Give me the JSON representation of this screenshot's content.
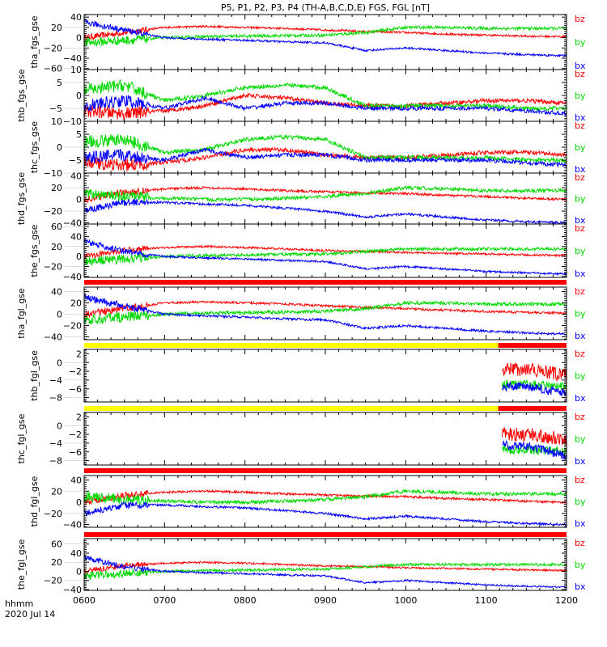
{
  "chart_data": {
    "type": "line",
    "title": "P5, P1, P2, P3, P4 (TH-A,B,C,D,E) FGS, FGL [nT]",
    "xlabel_lines": [
      "hhmm",
      "2020 Jul 14"
    ],
    "xlim": [
      6.0,
      12.0
    ],
    "x_ticks": [
      6,
      7,
      8,
      9,
      10,
      11,
      12
    ],
    "x_tick_labels": [
      "0600",
      "0700",
      "0800",
      "0900",
      "1000",
      "1100",
      "1200"
    ],
    "knot_times": [
      6.0,
      6.5,
      7.0,
      7.5,
      8.0,
      8.5,
      9.0,
      9.5,
      10.0,
      10.5,
      11.0,
      11.5,
      12.0
    ],
    "legend": [
      "bz",
      "by",
      "bx"
    ],
    "colors": {
      "bz": "#ff0000",
      "by": "#00d800",
      "bx": "#0000ff",
      "bar_red": "#ff0000",
      "bar_yellow": "#ffff00"
    },
    "panels": [
      {
        "ylabel": "tha_fgs_gse",
        "ylim": [
          -62,
          45
        ],
        "ticks": [
          40,
          20,
          0,
          -20,
          -40,
          -60
        ],
        "tick_labels": [
          "40",
          "20",
          "0",
          "−20",
          "−40",
          "−60"
        ],
        "series": {
          "bz": [
            0,
            10,
            20,
            22,
            20,
            18,
            15,
            12,
            10,
            7,
            5,
            3,
            2
          ],
          "by": [
            -10,
            -5,
            0,
            2,
            3,
            4,
            5,
            10,
            20,
            20,
            18,
            18,
            18
          ],
          "bx": [
            30,
            15,
            0,
            -3,
            -5,
            -8,
            -10,
            -25,
            -20,
            -25,
            -30,
            -33,
            -35
          ]
        },
        "noise": [
          2,
          3,
          2
        ]
      },
      {
        "ylabel": "thb_fgs_gse",
        "ylim": [
          -10,
          10
        ],
        "ticks": [
          10,
          5,
          0,
          -5,
          -10
        ],
        "tick_labels": [
          "10",
          "5",
          "0",
          "−5",
          "−10"
        ],
        "series": {
          "bz": [
            -6,
            -7,
            -6,
            -4,
            0,
            -1,
            -3,
            -4,
            -4,
            -3,
            -2,
            -2,
            -3
          ],
          "by": [
            2,
            4,
            -2,
            0,
            3,
            4,
            3,
            -4,
            -4,
            -4,
            -4,
            -5,
            -5
          ],
          "bx": [
            -4,
            -2,
            -5,
            -1,
            -5,
            -3,
            -3,
            -5,
            -5,
            -5,
            -5,
            -6,
            -7
          ]
        },
        "noise": [
          0.8,
          0.8,
          0.8
        ]
      },
      {
        "ylabel": "thc_fgs_gse",
        "ylim": [
          -10,
          10
        ],
        "ticks": [
          10,
          5,
          0,
          -5,
          -10
        ],
        "tick_labels": [
          "10",
          "5",
          "0",
          "−5",
          "−10"
        ],
        "series": {
          "bz": [
            -6,
            -7,
            -6,
            -4,
            -1,
            -1,
            -3,
            -4,
            -4,
            -3,
            -2,
            -2,
            -3
          ],
          "by": [
            2,
            3,
            -2,
            -1,
            3,
            4,
            3,
            -4,
            -4,
            -4,
            -4,
            -5,
            -5
          ],
          "bx": [
            -4,
            -3,
            -5,
            -1,
            -4,
            -3,
            -3,
            -5,
            -5,
            -5,
            -5,
            -6,
            -7
          ]
        },
        "noise": [
          0.8,
          0.8,
          0.8
        ]
      },
      {
        "ylabel": "thd_fgs_gse",
        "ylim": [
          -42,
          45
        ],
        "ticks": [
          40,
          20,
          0,
          -20,
          -40
        ],
        "tick_labels": [
          "40",
          "20",
          "0",
          "−20",
          "−40"
        ],
        "series": {
          "bz": [
            0,
            12,
            18,
            20,
            18,
            15,
            13,
            11,
            10,
            7,
            5,
            2,
            0
          ],
          "by": [
            10,
            5,
            2,
            0,
            0,
            2,
            5,
            10,
            20,
            18,
            15,
            15,
            15
          ],
          "bx": [
            -20,
            -5,
            -5,
            -8,
            -10,
            -15,
            -20,
            -30,
            -25,
            -30,
            -35,
            -38,
            -40
          ]
        },
        "noise": [
          2,
          3,
          2
        ]
      },
      {
        "ylabel": "the_fgs_gse",
        "ylim": [
          -42,
          65
        ],
        "ticks": [
          60,
          40,
          20,
          0,
          -20,
          -40
        ],
        "tick_labels": [
          "60",
          "40",
          "20",
          "0",
          "−20",
          "−40"
        ],
        "series": {
          "bz": [
            0,
            12,
            18,
            20,
            18,
            15,
            12,
            10,
            8,
            6,
            5,
            3,
            2
          ],
          "by": [
            -10,
            -5,
            0,
            2,
            3,
            4,
            5,
            10,
            15,
            15,
            15,
            15,
            15
          ],
          "bx": [
            30,
            10,
            0,
            -3,
            -5,
            -8,
            -10,
            -25,
            -20,
            -25,
            -30,
            -33,
            -35
          ]
        },
        "noise": [
          2,
          3,
          2
        ]
      },
      {
        "ylabel": "tha_fgl_gse",
        "ylim": [
          -45,
          48
        ],
        "ticks": [
          40,
          20,
          0,
          -20,
          -40
        ],
        "tick_labels": [
          "40",
          "20",
          "0",
          "−20",
          "−40"
        ],
        "series": {
          "bz": [
            0,
            10,
            20,
            22,
            20,
            18,
            15,
            12,
            10,
            7,
            5,
            3,
            2
          ],
          "by": [
            -10,
            -5,
            0,
            2,
            3,
            4,
            5,
            10,
            20,
            20,
            18,
            18,
            18
          ],
          "bx": [
            30,
            15,
            0,
            -3,
            -5,
            -8,
            -10,
            -25,
            -20,
            -25,
            -30,
            -33,
            -35
          ]
        },
        "noise": [
          2,
          3,
          2
        ]
      },
      {
        "ylabel": "thb_fgl_gse",
        "ylim": [
          -9,
          3
        ],
        "ticks": [
          2,
          0,
          -2,
          -4,
          -6,
          -8
        ],
        "tick_labels": [
          "2",
          "0",
          "−2",
          "−4",
          "−6",
          "−8"
        ],
        "series": {
          "bz": [
            null,
            null,
            null,
            null,
            null,
            null,
            null,
            null,
            null,
            null,
            null,
            -1.5,
            -3
          ],
          "by": [
            null,
            null,
            null,
            null,
            null,
            null,
            null,
            null,
            null,
            null,
            null,
            -5,
            -5.5
          ],
          "bx": [
            null,
            null,
            null,
            null,
            null,
            null,
            null,
            null,
            null,
            null,
            null,
            -5.5,
            -7
          ]
        },
        "noise": [
          0.8,
          0.5,
          0.5
        ],
        "data_start": 11.2
      },
      {
        "ylabel": "thc_fgl_gse",
        "ylim": [
          -9,
          3
        ],
        "ticks": [
          2,
          0,
          -2,
          -4,
          -6,
          -8
        ],
        "tick_labels": [
          "2",
          "0",
          "−2",
          "−4",
          "−6",
          "−8"
        ],
        "series": {
          "bz": [
            null,
            null,
            null,
            null,
            null,
            null,
            null,
            null,
            null,
            null,
            null,
            -2,
            -3
          ],
          "by": [
            null,
            null,
            null,
            null,
            null,
            null,
            null,
            null,
            null,
            null,
            null,
            -5.5,
            -6
          ],
          "bx": [
            null,
            null,
            null,
            null,
            null,
            null,
            null,
            null,
            null,
            null,
            null,
            -4.5,
            -7
          ]
        },
        "noise": [
          0.8,
          0.5,
          0.5
        ],
        "data_start": 11.2
      },
      {
        "ylabel": "thd_fgl_gse",
        "ylim": [
          -45,
          48
        ],
        "ticks": [
          40,
          20,
          0,
          -20,
          -40
        ],
        "tick_labels": [
          "40",
          "20",
          "0",
          "−20",
          "−40"
        ],
        "series": {
          "bz": [
            0,
            12,
            18,
            20,
            18,
            15,
            13,
            11,
            10,
            7,
            5,
            2,
            0
          ],
          "by": [
            10,
            5,
            2,
            0,
            0,
            2,
            5,
            10,
            20,
            18,
            15,
            15,
            15
          ],
          "bx": [
            -20,
            -5,
            -5,
            -8,
            -10,
            -15,
            -20,
            -30,
            -25,
            -30,
            -35,
            -38,
            -40
          ]
        },
        "noise": [
          2,
          3,
          2
        ]
      },
      {
        "ylabel": "the_fgl_gse",
        "ylim": [
          -42,
          72
        ],
        "ticks": [
          60,
          40,
          20,
          0,
          -20,
          -40
        ],
        "tick_labels": [
          "60",
          "40",
          "20",
          "0",
          "−20",
          "−40"
        ],
        "series": {
          "bz": [
            0,
            12,
            18,
            20,
            18,
            15,
            12,
            10,
            8,
            6,
            5,
            3,
            2
          ],
          "by": [
            -10,
            -5,
            0,
            2,
            3,
            4,
            5,
            10,
            15,
            15,
            15,
            15,
            15
          ],
          "bx": [
            30,
            10,
            0,
            -3,
            -5,
            -8,
            -10,
            -25,
            -20,
            -25,
            -30,
            -33,
            -35
          ]
        },
        "noise": [
          2,
          3,
          2
        ]
      }
    ],
    "status_bars": [
      {
        "segments": [
          {
            "from": 6.0,
            "to": 12.0,
            "color": "bar_red"
          }
        ]
      },
      {
        "segments": [
          {
            "from": 6.0,
            "to": 11.15,
            "color": "bar_yellow"
          },
          {
            "from": 11.15,
            "to": 12.0,
            "color": "bar_red"
          }
        ]
      },
      {
        "segments": [
          {
            "from": 6.0,
            "to": 11.15,
            "color": "bar_yellow"
          },
          {
            "from": 11.15,
            "to": 12.0,
            "color": "bar_red"
          }
        ]
      },
      {
        "segments": [
          {
            "from": 6.0,
            "to": 12.0,
            "color": "bar_red"
          }
        ]
      },
      {
        "segments": [
          {
            "from": 6.0,
            "to": 12.0,
            "color": "bar_red"
          }
        ]
      }
    ]
  }
}
